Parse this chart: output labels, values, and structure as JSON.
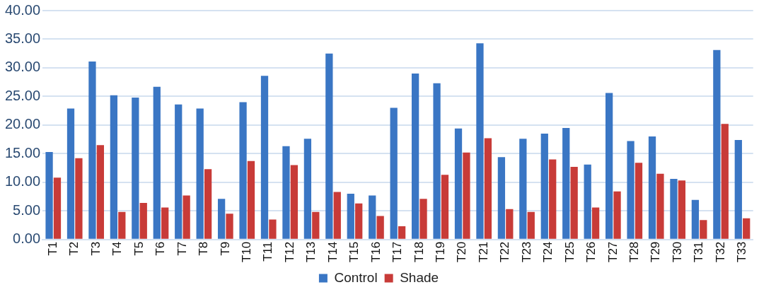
{
  "chart_data": {
    "type": "bar",
    "categories": [
      "T1",
      "T2",
      "T3",
      "T4",
      "T5",
      "T6",
      "T7",
      "T8",
      "T9",
      "T10",
      "T11",
      "T12",
      "T13",
      "T14",
      "T15",
      "T16",
      "T17",
      "T18",
      "T19",
      "T20",
      "T21",
      "T22",
      "T23",
      "T24",
      "T25",
      "T26",
      "T27",
      "T28",
      "T29",
      "T30",
      "T31",
      "T32",
      "T33"
    ],
    "series": [
      {
        "name": "Control",
        "color": "#3a76c4",
        "values": [
          15.3,
          22.9,
          31.1,
          25.2,
          24.8,
          26.7,
          23.6,
          22.9,
          7.1,
          24.0,
          28.6,
          16.3,
          17.6,
          32.5,
          8.0,
          7.7,
          23.0,
          29.0,
          27.3,
          19.4,
          34.3,
          14.4,
          17.6,
          18.5,
          19.5,
          13.1,
          25.6,
          17.2,
          18.0,
          10.6,
          6.9,
          33.1,
          17.4
        ]
      },
      {
        "name": "Shade",
        "color": "#c83b38",
        "values": [
          10.8,
          14.2,
          16.5,
          4.8,
          6.4,
          5.6,
          7.7,
          12.3,
          4.5,
          13.7,
          3.5,
          13.0,
          4.8,
          8.3,
          6.3,
          4.1,
          2.3,
          7.1,
          11.3,
          15.2,
          17.7,
          5.3,
          4.8,
          14.0,
          12.7,
          5.6,
          8.4,
          13.4,
          11.5,
          10.3,
          3.4,
          20.2,
          3.7
        ]
      }
    ],
    "ylim": [
      0,
      40
    ],
    "yticks": [
      {
        "value": 0,
        "label": "0.00"
      },
      {
        "value": 5,
        "label": "5.00"
      },
      {
        "value": 10,
        "label": "10.00"
      },
      {
        "value": 15,
        "label": "15.00"
      },
      {
        "value": 20,
        "label": "20.00"
      },
      {
        "value": 25,
        "label": "25.00"
      },
      {
        "value": 30,
        "label": "30.00"
      },
      {
        "value": 35,
        "label": "35.00"
      },
      {
        "value": 40,
        "label": "40.00"
      }
    ],
    "grid": "y",
    "legend": "bottom"
  }
}
